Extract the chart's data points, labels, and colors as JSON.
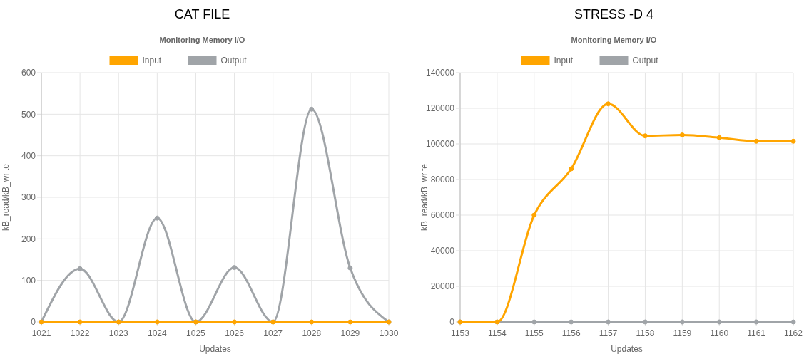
{
  "chart_data": [
    {
      "type": "line",
      "title": "CAT FILE",
      "subtitle": "Monitoring Memory I/O",
      "xlabel": "Updates",
      "ylabel": "kB_read/kB_write",
      "categories": [
        "1021",
        "1022",
        "1023",
        "1024",
        "1025",
        "1026",
        "1027",
        "1028",
        "1029",
        "1030"
      ],
      "series": [
        {
          "name": "Input",
          "color": "#ffa500",
          "values": [
            0,
            0,
            0,
            0,
            0,
            0,
            0,
            0,
            0,
            0
          ]
        },
        {
          "name": "Output",
          "color": "#a0a4a8",
          "values": [
            0,
            128,
            0,
            250,
            0,
            131,
            0,
            512,
            130,
            0
          ]
        }
      ],
      "ylim": [
        0,
        600
      ],
      "yticks": [
        0,
        100,
        200,
        300,
        400,
        500,
        600
      ],
      "grid": true,
      "legend": "top",
      "marker": "circle"
    },
    {
      "type": "line",
      "title": "STRESS -D 4",
      "subtitle": "Monitoring Memory I/O",
      "xlabel": "Updates",
      "ylabel": "kB_read/kB_write",
      "categories": [
        "1153",
        "1154",
        "1155",
        "1156",
        "1157",
        "1158",
        "1159",
        "1160",
        "1161",
        "1162"
      ],
      "series": [
        {
          "name": "Input",
          "color": "#ffa500",
          "values": [
            0,
            0,
            60000,
            86000,
            122500,
            104500,
            105000,
            103500,
            101500,
            101500
          ]
        },
        {
          "name": "Output",
          "color": "#a0a4a8",
          "values": [
            0,
            0,
            0,
            0,
            0,
            0,
            0,
            0,
            0,
            0
          ]
        }
      ],
      "ylim": [
        0,
        140000
      ],
      "yticks": [
        0,
        20000,
        40000,
        60000,
        80000,
        100000,
        120000,
        140000
      ],
      "grid": true,
      "legend": "top",
      "marker": "circle"
    }
  ]
}
